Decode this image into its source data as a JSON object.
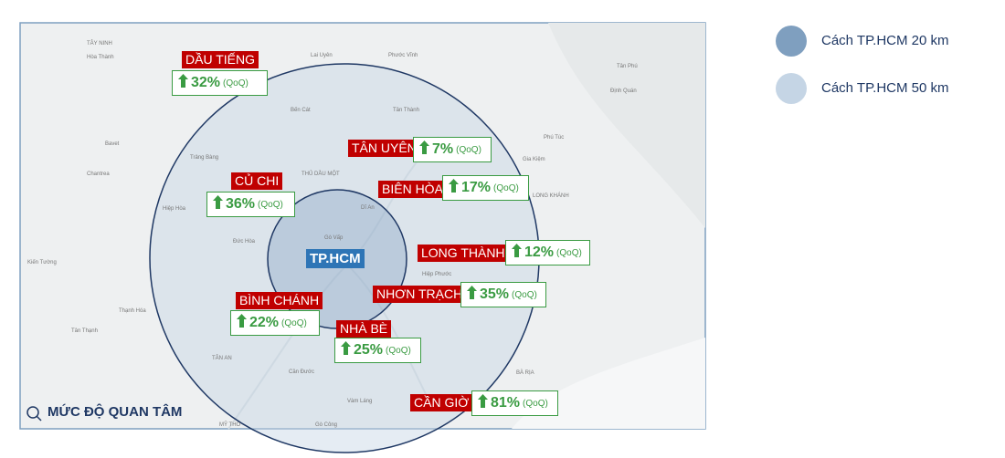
{
  "map": {
    "center_label": "TP.HCM",
    "caption": "MỨC ĐỘ QUAN TÂM",
    "areas": [
      {
        "name": "DẦU TIẾNG",
        "change": "32%",
        "period": "(QoQ)"
      },
      {
        "name": "CỦ CHI",
        "change": "36%",
        "period": "(QoQ)"
      },
      {
        "name": "TÂN UYÊN",
        "change": "7%",
        "period": "(QoQ)"
      },
      {
        "name": "BIÊN HÒA",
        "change": "17%",
        "period": "(QoQ)"
      },
      {
        "name": "LONG THÀNH",
        "change": "12%",
        "period": "(QoQ)"
      },
      {
        "name": "NHƠN TRẠCH",
        "change": "35%",
        "period": "(QoQ)"
      },
      {
        "name": "BÌNH CHÁNH",
        "change": "22%",
        "period": "(QoQ)"
      },
      {
        "name": "NHÀ BÈ",
        "change": "25%",
        "period": "(QoQ)"
      },
      {
        "name": "CẦN GIỜ",
        "change": "81%",
        "period": "(QoQ)"
      }
    ],
    "place_names": [
      "TÂY NINH",
      "Hòa Thành",
      "Lai Uyên",
      "Phước Vĩnh",
      "Tân Phú",
      "Định Quán",
      "Bến Cát",
      "Tân Thành",
      "Phú Túc",
      "Trảng Bàng",
      "THỦ DẦU MỘT",
      "Gia Kiệm",
      "LONG KHÁNH",
      "Hiệp Hòa",
      "Dĩ An",
      "Đức Hòa",
      "Gò Vấp",
      "Hiệp Phước",
      "Thạnh Hóa",
      "Tân Thạnh",
      "TÂN AN",
      "Cần Đước",
      "BÀ RỊA",
      "Vàm Láng",
      "MỸ THO",
      "Gò Công",
      "Kiến Tường",
      "Chantrea",
      "Bavet"
    ]
  },
  "legend": [
    {
      "label": "Cách TP.HCM 20 km"
    },
    {
      "label": "Cách TP.HCM 50 km"
    }
  ]
}
